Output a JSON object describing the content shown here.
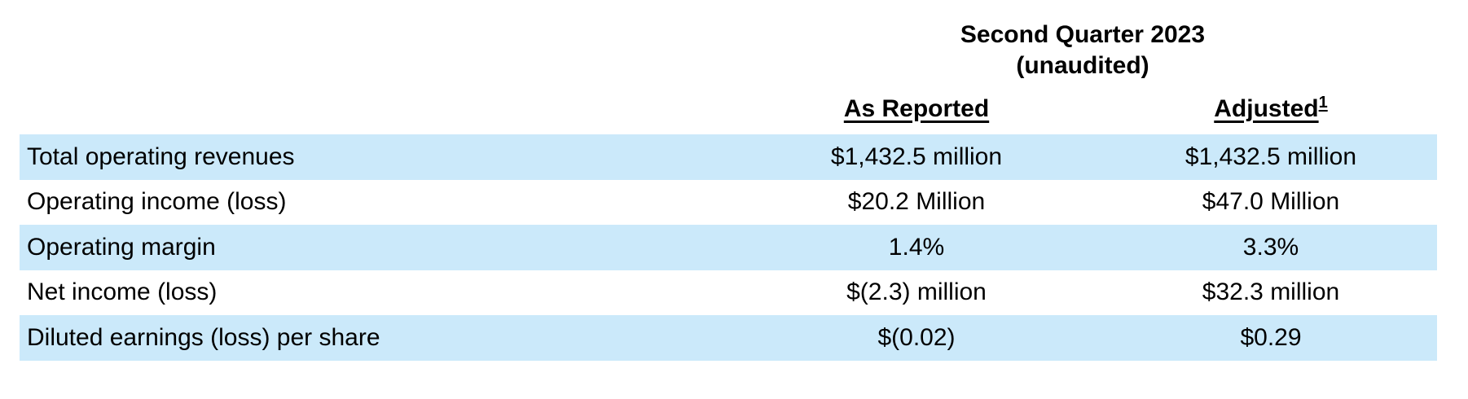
{
  "table": {
    "title": {
      "line1": "Second Quarter 2023",
      "line2": "(unaudited)"
    },
    "column_headers": {
      "as_reported": "As Reported",
      "adjusted": "Adjusted",
      "adjusted_footnote_sup": "1"
    },
    "colors": {
      "shaded_row": "#cbe9fa",
      "text": "#000000",
      "background": "#ffffff"
    },
    "rows": [
      {
        "label": "Total operating revenues",
        "as_reported": "$1,432.5 million",
        "adjusted": "$1,432.5 million",
        "shaded": true
      },
      {
        "label": "Operating income (loss)",
        "as_reported": "$20.2 Million",
        "adjusted": "$47.0 Million",
        "shaded": false
      },
      {
        "label": "Operating margin",
        "as_reported": "1.4%",
        "adjusted": "3.3%",
        "shaded": true
      },
      {
        "label": "Net income (loss)",
        "as_reported": "$(2.3) million",
        "adjusted": "$32.3 million",
        "shaded": false
      },
      {
        "label": "Diluted earnings (loss) per share",
        "as_reported": "$(0.02)",
        "adjusted": "$0.29",
        "shaded": true
      }
    ]
  }
}
